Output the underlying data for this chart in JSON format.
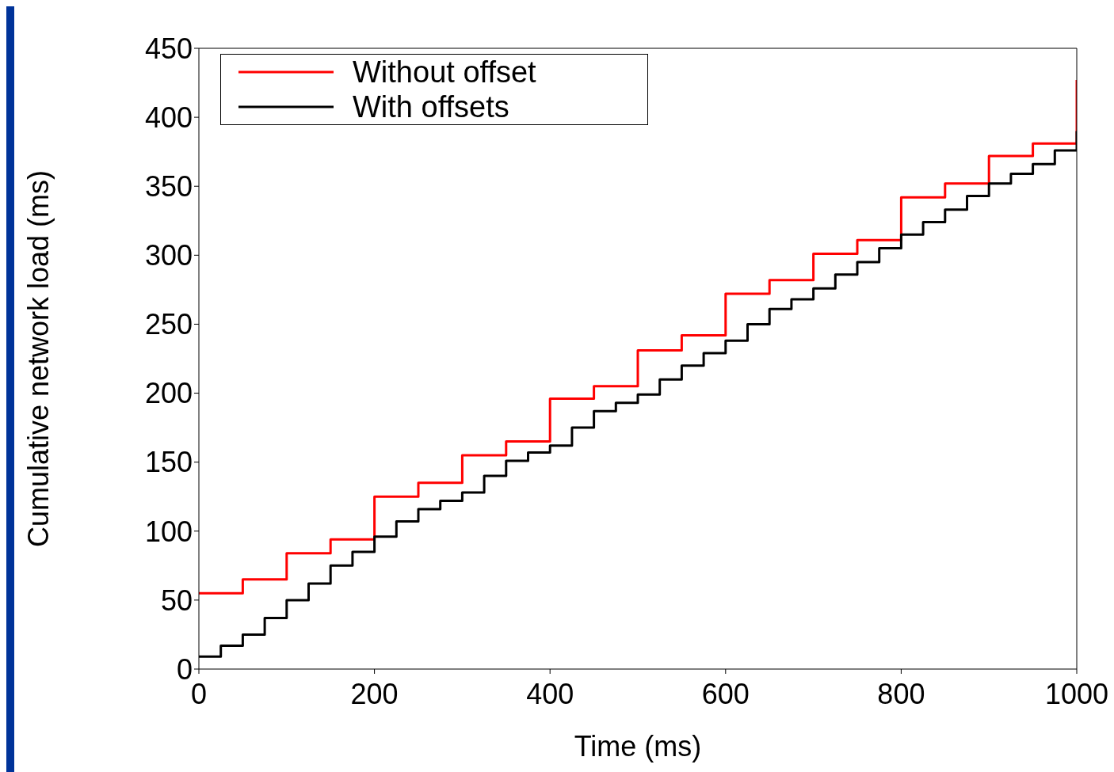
{
  "chart_data": {
    "type": "step",
    "xlabel": "Time (ms)",
    "ylabel": "Cumulative network load (ms)",
    "xlim": [
      0,
      1000
    ],
    "xticks": [
      0,
      200,
      400,
      600,
      800,
      1000
    ],
    "ylim": [
      0,
      450
    ],
    "yticks": [
      0,
      50,
      100,
      150,
      200,
      250,
      300,
      350,
      400,
      450
    ],
    "legend": "top left",
    "line_style": "solid",
    "marker": "none",
    "series": [
      {
        "name": "Without offset",
        "color": "#ff0000",
        "x": [
          0,
          50,
          100,
          150,
          200,
          250,
          300,
          350,
          400,
          450,
          500,
          550,
          600,
          650,
          700,
          750,
          800,
          850,
          900,
          950,
          1000
        ],
        "values": [
          55,
          65,
          84,
          94,
          125,
          135,
          155,
          165,
          196,
          205,
          231,
          242,
          272,
          282,
          301,
          311,
          342,
          352,
          372,
          381,
          427
        ]
      },
      {
        "name": "With offsets",
        "color": "#000000",
        "x": [
          0,
          25,
          50,
          75,
          100,
          125,
          150,
          175,
          200,
          225,
          250,
          275,
          300,
          325,
          350,
          375,
          400,
          425,
          450,
          475,
          500,
          525,
          550,
          575,
          600,
          625,
          650,
          675,
          700,
          725,
          750,
          775,
          800,
          825,
          850,
          875,
          900,
          925,
          950,
          975,
          1000
        ],
        "values": [
          9,
          17,
          25,
          37,
          50,
          62,
          75,
          85,
          96,
          107,
          116,
          122,
          128,
          140,
          151,
          157,
          162,
          175,
          187,
          193,
          199,
          210,
          220,
          229,
          238,
          250,
          261,
          268,
          276,
          286,
          295,
          305,
          315,
          324,
          333,
          343,
          352,
          359,
          366,
          376,
          390
        ]
      }
    ]
  }
}
